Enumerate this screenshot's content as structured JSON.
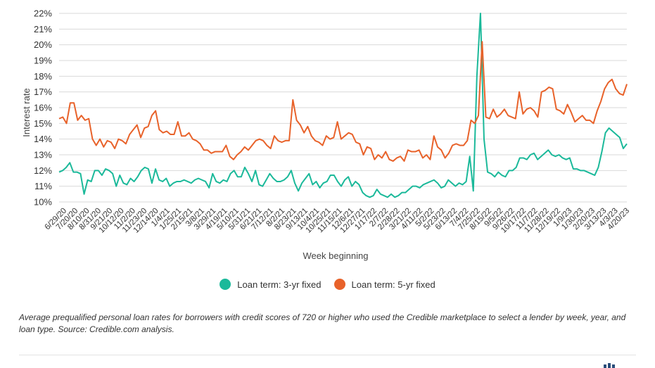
{
  "chart_data": {
    "type": "line",
    "xlabel": "Week beginning",
    "ylabel": "Interest rate",
    "ylim": [
      10,
      22
    ],
    "yticks": [
      "10%",
      "11%",
      "12%",
      "13%",
      "14%",
      "15%",
      "16%",
      "17%",
      "18%",
      "19%",
      "20%",
      "21%",
      "22%"
    ],
    "x_tick_labels": [
      "6/29/20",
      "7/20/20",
      "8/10/20",
      "8/31/20",
      "9/21/20",
      "10/12/20",
      "11/2/20",
      "11/23/20",
      "12/14/20",
      "1/4/21",
      "1/25/21",
      "2/15/21",
      "3/8/21",
      "3/29/21",
      "4/19/21",
      "5/10/21",
      "5/31/21",
      "6/21/21",
      "7/12/21",
      "8/2/21",
      "8/23/21",
      "9/13/21",
      "10/4/21",
      "10/25/21",
      "11/15/21",
      "12/6/21",
      "12/27/21",
      "1/17/22",
      "2/7/22",
      "2/28/22",
      "3/21/22",
      "4/11/22",
      "5/2/22",
      "5/23/22",
      "6/13/22",
      "7/4/22",
      "7/25/22",
      "8/15/22",
      "9/5/22",
      "9/26/22",
      "10/17/22",
      "11/7/22",
      "11/28/22",
      "12/19/22",
      "1/9/23",
      "1/30/23",
      "2/20/23",
      "3/13/23",
      "4/3/23",
      "4/20/23"
    ],
    "grid": true,
    "legend_position": "bottom",
    "series": [
      {
        "name": "Loan term: 3-yr fixed",
        "color": "#1bb99a",
        "values": [
          11.9,
          12.0,
          12.2,
          12.5,
          11.9,
          11.9,
          11.8,
          10.5,
          11.4,
          11.3,
          12.0,
          12.0,
          11.7,
          12.1,
          12.0,
          11.8,
          11.0,
          11.7,
          11.2,
          11.1,
          11.5,
          11.3,
          11.6,
          12.0,
          12.2,
          12.1,
          11.2,
          12.1,
          11.4,
          11.3,
          11.5,
          11.0,
          11.2,
          11.3,
          11.3,
          11.4,
          11.3,
          11.2,
          11.4,
          11.5,
          11.4,
          11.3,
          10.9,
          11.8,
          11.3,
          11.2,
          11.4,
          11.3,
          11.8,
          12.0,
          11.6,
          11.6,
          12.2,
          11.8,
          11.3,
          12.0,
          11.1,
          11.0,
          11.4,
          11.8,
          11.5,
          11.3,
          11.3,
          11.4,
          11.6,
          12.0,
          11.2,
          10.7,
          11.2,
          11.5,
          11.8,
          11.1,
          11.3,
          10.9,
          11.2,
          11.3,
          11.7,
          11.7,
          11.3,
          11.0,
          11.4,
          11.6,
          11.0,
          11.3,
          11.1,
          10.6,
          10.4,
          10.3,
          10.4,
          10.8,
          10.5,
          10.4,
          10.3,
          10.5,
          10.3,
          10.4,
          10.6,
          10.6,
          10.8,
          11.0,
          11.0,
          10.9,
          11.1,
          11.2,
          11.3,
          11.4,
          11.2,
          10.9,
          11.0,
          11.4,
          11.2,
          11.0,
          11.2,
          11.1,
          11.3,
          12.9,
          10.7,
          18.0,
          22.0,
          14.0,
          11.9,
          11.8,
          11.6,
          11.9,
          11.7,
          11.6,
          12.0,
          12.0,
          12.2,
          12.8,
          12.8,
          12.7,
          13.0,
          13.1,
          12.7,
          12.9,
          13.1,
          13.3,
          13.0,
          12.9,
          13.0,
          12.8,
          12.7,
          12.8,
          12.1,
          12.1,
          12.0,
          12.0,
          11.9,
          11.8,
          11.7,
          12.2,
          13.2,
          14.4,
          14.7,
          14.5,
          14.3,
          14.1,
          13.4,
          13.7
        ]
      },
      {
        "name": "Loan term: 5-yr fixed",
        "color": "#e8622a",
        "values": [
          15.3,
          15.4,
          15.0,
          16.3,
          16.3,
          15.2,
          15.5,
          15.2,
          15.3,
          14.0,
          13.6,
          14.0,
          13.5,
          13.9,
          13.8,
          13.4,
          14.0,
          13.9,
          13.7,
          14.3,
          14.6,
          14.9,
          14.1,
          14.7,
          14.8,
          15.5,
          15.8,
          14.6,
          14.4,
          14.5,
          14.3,
          14.3,
          15.1,
          14.2,
          14.2,
          14.4,
          14.0,
          13.9,
          13.7,
          13.3,
          13.3,
          13.1,
          13.2,
          13.2,
          13.2,
          13.6,
          12.9,
          12.7,
          13.0,
          13.2,
          13.5,
          13.3,
          13.6,
          13.9,
          14.0,
          13.9,
          13.6,
          13.4,
          14.2,
          13.9,
          13.8,
          13.9,
          13.9,
          16.5,
          15.2,
          14.9,
          14.4,
          14.8,
          14.2,
          13.9,
          13.8,
          13.6,
          14.2,
          14.0,
          14.1,
          15.1,
          14.0,
          14.2,
          14.4,
          14.3,
          13.8,
          13.7,
          13.0,
          13.5,
          13.4,
          12.7,
          13.0,
          12.8,
          13.2,
          12.7,
          12.6,
          12.8,
          12.9,
          12.6,
          13.3,
          13.2,
          13.2,
          13.3,
          12.8,
          13.0,
          12.7,
          14.2,
          13.5,
          13.3,
          12.8,
          13.1,
          13.6,
          13.7,
          13.6,
          13.6,
          13.9,
          15.2,
          15.0,
          15.5,
          20.2,
          15.4,
          15.3,
          15.9,
          15.4,
          15.6,
          15.9,
          15.5,
          15.4,
          15.3,
          17.0,
          15.6,
          15.9,
          16.0,
          15.8,
          15.4,
          17.0,
          17.1,
          17.3,
          17.2,
          15.9,
          15.8,
          15.6,
          16.2,
          15.7,
          15.1,
          15.3,
          15.5,
          15.2,
          15.2,
          15.0,
          15.8,
          16.4,
          17.2,
          17.6,
          17.8,
          17.2,
          16.9,
          16.8,
          17.5
        ]
      }
    ]
  },
  "caption": "Average prequalified personal loan rates for borrowers with credit scores of 720 or higher who used the Credible marketplace to select a lender by week, year, and loan type. Source: Credible.com analysis."
}
